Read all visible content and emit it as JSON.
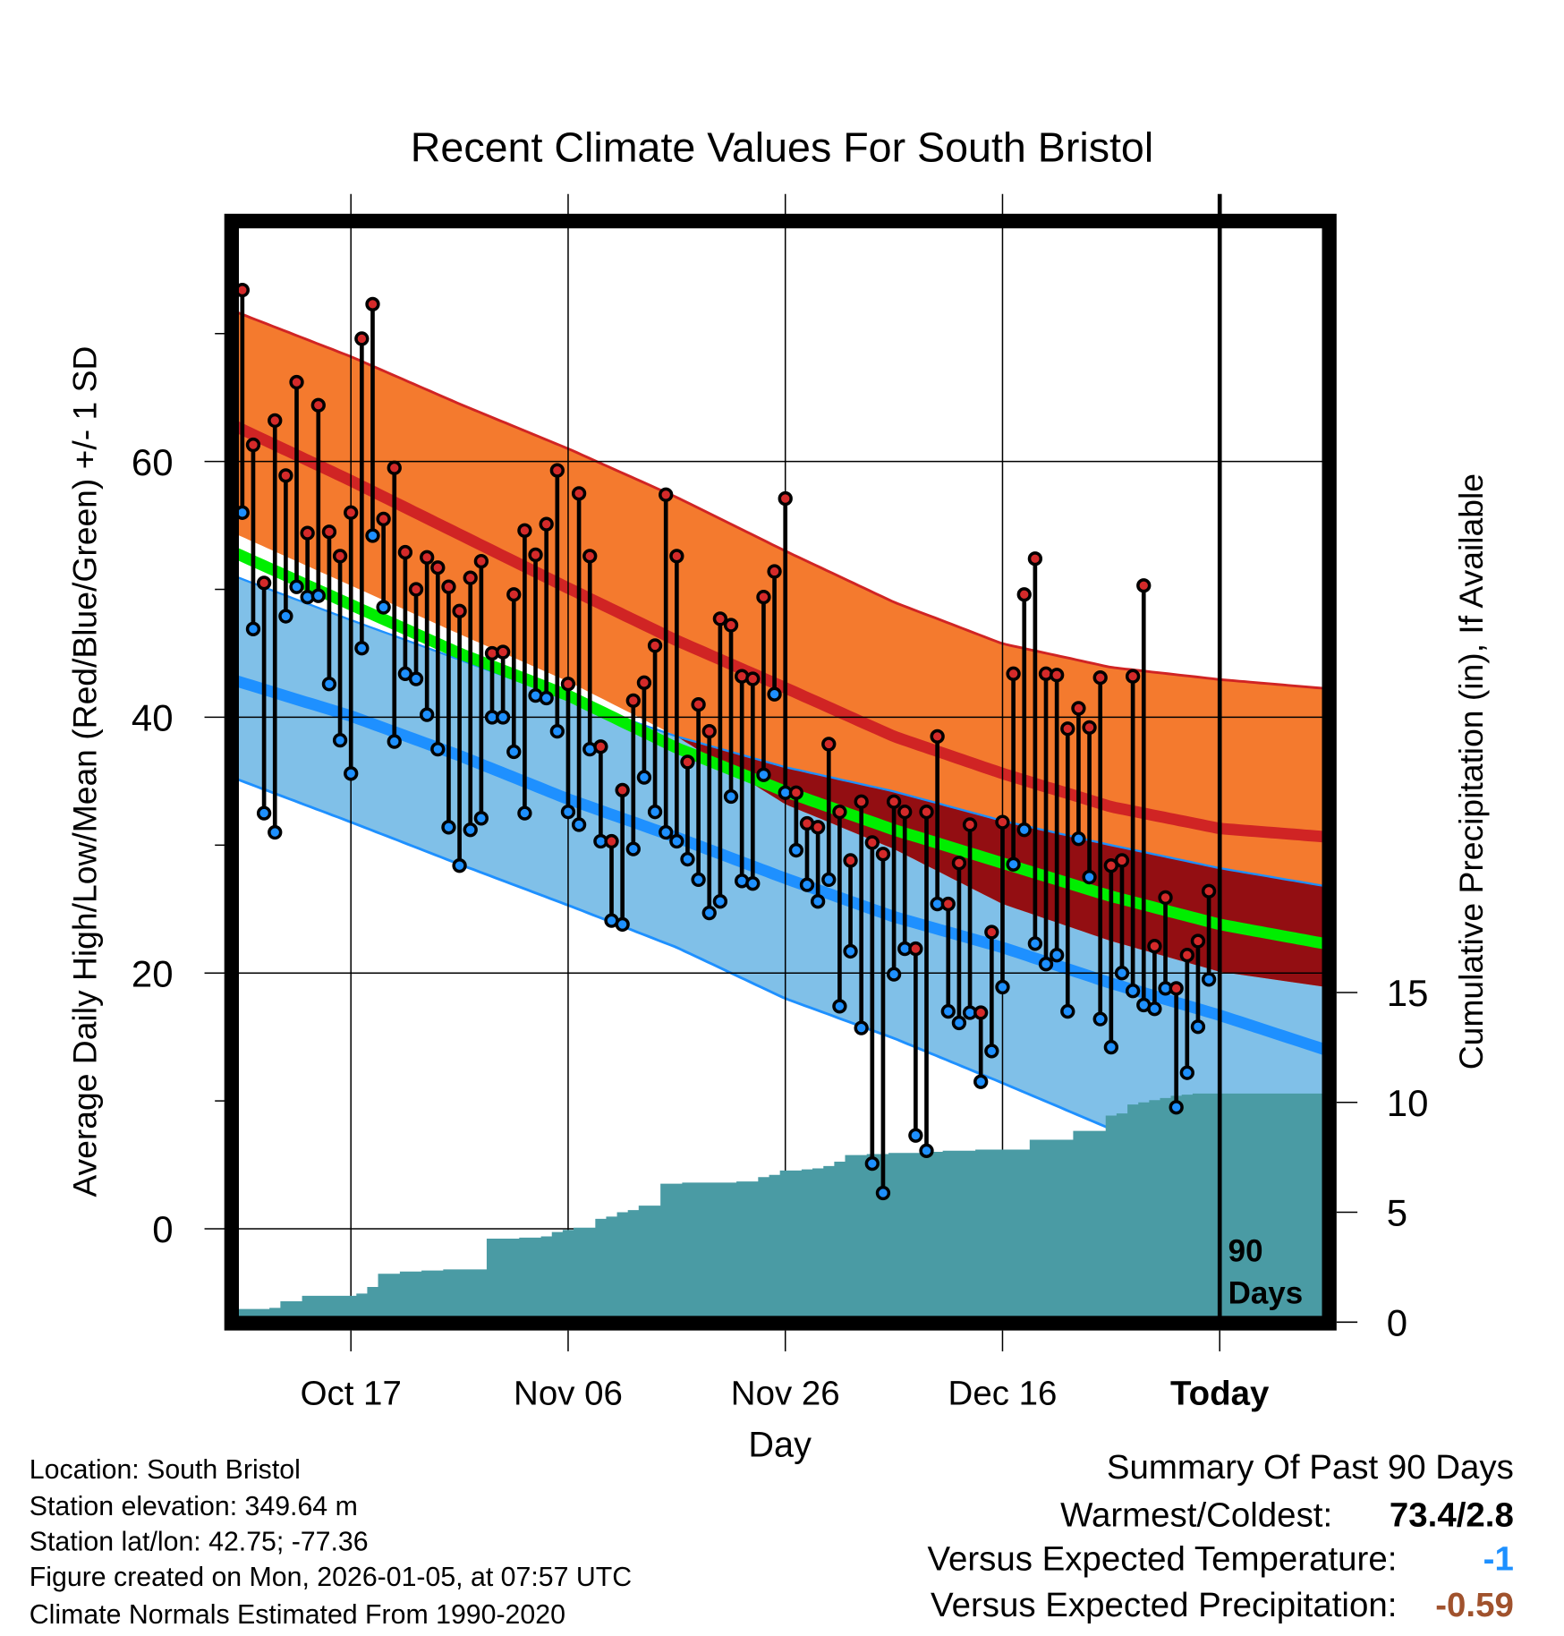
{
  "chart_data": {
    "type": "line",
    "title": "Recent Climate Values For South Bristol",
    "xlabel": "Day",
    "ylabel": "Average Daily High/Low/Mean (Red/Blue/Green) +/- 1 SD",
    "y2label": "Cumulative Precipitation (in), If Available",
    "start_date": "Oct 07",
    "x_units": "days since Oct 07",
    "xlim": [
      -0.7,
      99.8
    ],
    "ylim": [
      -7.3,
      78.8
    ],
    "y2lim": [
      0,
      50.1
    ],
    "x_ticks": [
      {
        "day": 10,
        "label": "Oct 17"
      },
      {
        "day": 30,
        "label": "Nov 06"
      },
      {
        "day": 50,
        "label": "Nov 26"
      },
      {
        "day": 70,
        "label": "Dec 16"
      },
      {
        "day": 90,
        "label": "Today"
      }
    ],
    "y_ticks": [
      {
        "value": 0,
        "label": "0"
      },
      {
        "value": 20,
        "label": "20"
      },
      {
        "value": 40,
        "label": "40"
      },
      {
        "value": 60,
        "label": "60"
      }
    ],
    "y_minor_ticks": [
      10,
      30,
      50,
      70
    ],
    "y2_ticks": [
      {
        "value": 0,
        "label": "0"
      },
      {
        "value": 5,
        "label": "5"
      },
      {
        "value": 10,
        "label": "10"
      },
      {
        "value": 15,
        "label": "15"
      }
    ],
    "today_day": 90,
    "today_label_line1": "90",
    "today_label_line2": "Days",
    "daily_high": [
      73.4,
      61.3,
      50.5,
      63.2,
      58.9,
      66.2,
      54.4,
      64.4,
      54.5,
      52.6,
      56.0,
      69.6,
      72.3,
      55.5,
      59.5,
      52.9,
      50.0,
      52.5,
      51.7,
      50.2,
      48.3,
      50.9,
      52.2,
      45.0,
      45.1,
      49.6,
      54.6,
      52.7,
      55.1,
      59.3,
      42.6,
      57.5,
      52.6,
      37.7,
      30.3,
      34.3,
      41.3,
      42.7,
      45.6,
      57.4,
      52.6,
      36.5,
      41.0,
      38.9,
      47.7,
      47.2,
      43.2,
      43.0,
      49.4,
      51.4,
      57.1,
      34.1,
      31.7,
      31.4,
      37.9,
      32.6,
      28.8,
      33.4,
      30.2,
      29.3,
      33.4,
      32.6,
      21.9,
      32.6,
      38.5,
      25.4,
      28.6,
      31.6,
      16.9,
      23.2,
      31.8,
      43.4,
      49.6,
      52.4,
      43.4,
      43.3,
      39.1,
      40.7,
      39.2,
      43.1,
      28.4,
      28.8,
      43.2,
      50.3,
      22.1,
      25.9,
      18.8,
      21.4,
      22.5,
      26.4
    ],
    "daily_low": [
      56.0,
      46.9,
      32.5,
      31.0,
      47.9,
      50.2,
      49.4,
      49.5,
      42.6,
      38.2,
      35.6,
      45.4,
      54.2,
      48.6,
      38.1,
      43.4,
      43.0,
      40.2,
      37.5,
      31.4,
      28.4,
      31.2,
      32.1,
      40.0,
      40.0,
      37.3,
      32.5,
      41.7,
      41.5,
      38.9,
      32.6,
      31.6,
      37.5,
      30.3,
      24.1,
      23.8,
      29.7,
      35.3,
      32.6,
      31.0,
      30.3,
      28.9,
      27.3,
      24.7,
      25.6,
      33.8,
      27.2,
      27.0,
      35.5,
      41.8,
      34.1,
      29.6,
      26.9,
      25.6,
      27.3,
      17.4,
      21.7,
      15.7,
      5.1,
      2.8,
      19.9,
      21.9,
      7.3,
      6.1,
      25.4,
      17.0,
      16.1,
      16.9,
      11.5,
      13.9,
      18.9,
      28.5,
      31.2,
      22.3,
      20.7,
      21.4,
      17.0,
      30.5,
      27.5,
      16.4,
      14.2,
      20.0,
      18.6,
      17.5,
      17.2,
      18.8,
      9.5,
      12.2,
      15.8,
      19.5
    ],
    "cumulative_precip": [
      0.6,
      0.6,
      0.6,
      0.65,
      0.95,
      0.95,
      1.2,
      1.2,
      1.2,
      1.2,
      1.2,
      1.3,
      1.6,
      2.2,
      2.2,
      2.3,
      2.3,
      2.35,
      2.35,
      2.4,
      2.4,
      2.4,
      2.4,
      3.8,
      3.8,
      3.8,
      3.85,
      3.85,
      3.9,
      4.1,
      4.2,
      4.3,
      4.3,
      4.7,
      4.8,
      5.0,
      5.1,
      5.3,
      5.3,
      6.3,
      6.3,
      6.35,
      6.35,
      6.35,
      6.35,
      6.35,
      6.4,
      6.4,
      6.6,
      6.7,
      6.9,
      6.9,
      6.95,
      7.0,
      7.1,
      7.3,
      7.6,
      7.6,
      7.65,
      7.65,
      7.7,
      7.7,
      7.7,
      7.75,
      7.75,
      7.8,
      7.8,
      7.8,
      7.85,
      7.85,
      7.85,
      7.85,
      7.85,
      8.3,
      8.3,
      8.3,
      8.3,
      8.7,
      8.7,
      8.7,
      9.4,
      9.5,
      9.9,
      10.0,
      10.1,
      10.2,
      10.3,
      10.35,
      10.4,
      10.4
    ],
    "normals": {
      "days": [
        0,
        10,
        20,
        30,
        40,
        50,
        60,
        70,
        80,
        90,
        99
      ],
      "high_plus_sd": [
        71.5,
        68.2,
        64.5,
        61.0,
        57.2,
        53.0,
        49.0,
        45.75,
        43.9,
        42.95,
        42.3
      ],
      "high_mean": [
        62.5,
        58.5,
        54.3,
        50.1,
        46.0,
        42.3,
        38.5,
        35.6,
        33.0,
        31.3,
        30.7
      ],
      "high_minus_sd": [
        54.1,
        50.3,
        46.5,
        42.8,
        38.5,
        33.2,
        29.7,
        25.4,
        22.5,
        20.1,
        19.0
      ],
      "mean": [
        52.6,
        48.8,
        45.0,
        41.7,
        37.6,
        34.2,
        31.2,
        28.6,
        26.0,
        23.8,
        22.4
      ],
      "low_plus_sd": [
        50.8,
        47.6,
        44.5,
        41.4,
        38.5,
        36.1,
        34.2,
        31.9,
        30.0,
        28.2,
        26.9
      ],
      "low_mean": [
        42.7,
        40.1,
        37.0,
        33.6,
        30.6,
        27.4,
        24.4,
        22.0,
        19.2,
        16.7,
        14.2
      ],
      "low_minus_sd": [
        35.0,
        31.8,
        28.5,
        25.3,
        22.0,
        18.0,
        14.9,
        11.4,
        7.8,
        4.6,
        2.0
      ]
    },
    "colors": {
      "high_band": "#f47a2e",
      "high_line": "#d02424",
      "overlap": "#930e12",
      "mean_line": "#00ee00",
      "low_band": "#80c0e8",
      "low_line": "#1e90ff",
      "precip": "#4a9ba4",
      "high_marker": "#d42a2a",
      "low_marker": "#1e90ff"
    }
  },
  "info": {
    "location": "Location: South Bristol",
    "elevation": "Station elevation: 349.64 m",
    "latlon": "Station lat/lon: 42.75; -77.36",
    "created": "Figure created on Mon, 2026-01-05, at 07:57 UTC",
    "normals": "Climate Normals Estimated From 1990-2020"
  },
  "summary": {
    "title": "Summary Of Past 90 Days",
    "warmest_coldest_label": "Warmest/Coldest:",
    "warmest_coldest_value": "73.4/2.8",
    "temp_label": "Versus Expected Temperature:",
    "temp_value": "-1",
    "temp_color": "#1e90ff",
    "precip_label": "Versus Expected Precipitation:",
    "precip_value": "-0.59",
    "precip_color": "#a0522d"
  }
}
